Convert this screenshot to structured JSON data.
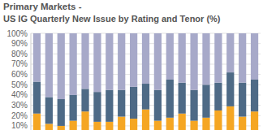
{
  "chart_data": {
    "type": "bar",
    "title": "Primary Markets -",
    "subtitle": "US IG Quarterly New Issue by Rating and Tenor (%)",
    "stacked": true,
    "grid": true,
    "tick_labels": "y",
    "categories": [
      null,
      null,
      null,
      null,
      null,
      null,
      null,
      null,
      null,
      null,
      null,
      null,
      null,
      null,
      null,
      null,
      null,
      null,
      null
    ],
    "series": [
      {
        "color": "#f5a623",
        "values": [
          22,
          12,
          10,
          15,
          24,
          14,
          14,
          19,
          17,
          26,
          15,
          18,
          22,
          15,
          18,
          25,
          29,
          19,
          24
        ]
      },
      {
        "color": "#4e6a86",
        "values": [
          31,
          26,
          26,
          25,
          22,
          29,
          31,
          26,
          31,
          25,
          30,
          37,
          30,
          30,
          32,
          27,
          33,
          33,
          31
        ]
      },
      {
        "color": "#a7a9c9",
        "values": [
          47,
          62,
          64,
          60,
          54,
          57,
          55,
          55,
          52,
          49,
          55,
          45,
          48,
          55,
          50,
          48,
          38,
          48,
          45
        ]
      }
    ],
    "ylim": [
      6,
      100
    ],
    "yticks": [
      {
        "value": 10,
        "label": "10%"
      },
      {
        "value": 20,
        "label": "20%"
      },
      {
        "value": 30,
        "label": "30%"
      },
      {
        "value": 40,
        "label": "40%"
      },
      {
        "value": 50,
        "label": "50%"
      },
      {
        "value": 60,
        "label": "60%"
      },
      {
        "value": 70,
        "label": "70%"
      },
      {
        "value": 80,
        "label": "80%"
      },
      {
        "value": 90,
        "label": "90%"
      },
      {
        "value": 100,
        "label": "100%"
      }
    ]
  }
}
